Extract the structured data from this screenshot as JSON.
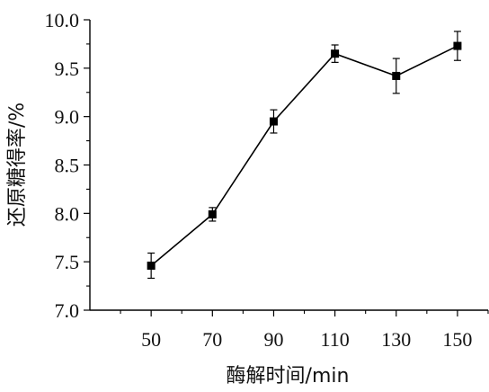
{
  "chart_data": {
    "type": "line",
    "xlabel": "酶解时间/min",
    "ylabel": "还原糖得率/%",
    "x": [
      50,
      70,
      90,
      110,
      130,
      150
    ],
    "x_ticks": [
      "50",
      "70",
      "90",
      "110",
      "130",
      "150"
    ],
    "y_ticks": [
      "7.0",
      "7.5",
      "8.0",
      "8.5",
      "9.0",
      "9.5",
      "10.0"
    ],
    "xlim": [
      30,
      160
    ],
    "ylim": [
      7.0,
      10.0
    ],
    "series": [
      {
        "values": [
          7.46,
          7.99,
          8.95,
          9.65,
          9.42,
          9.73
        ],
        "errors": [
          0.13,
          0.07,
          0.12,
          0.09,
          0.18,
          0.15
        ]
      }
    ],
    "grid": false,
    "color": "#000000"
  }
}
